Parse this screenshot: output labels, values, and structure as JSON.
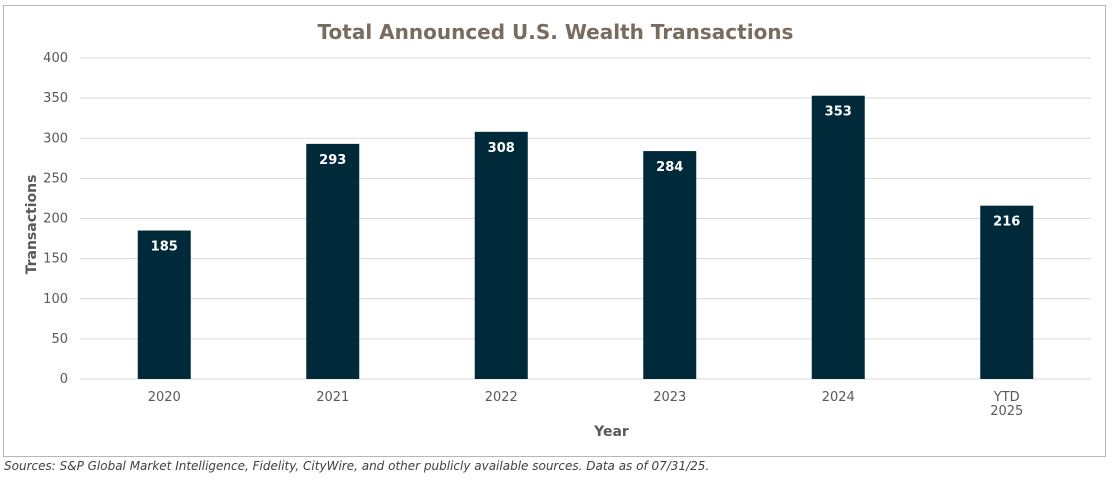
{
  "chart_data": {
    "type": "bar",
    "title": "Total Announced U.S. Wealth Transactions",
    "xlabel": "Year",
    "ylabel": "Transactions",
    "categories": [
      [
        "2020"
      ],
      [
        "2021"
      ],
      [
        "2022"
      ],
      [
        "2023"
      ],
      [
        "2024"
      ],
      [
        "YTD",
        "2025"
      ]
    ],
    "values": [
      185,
      293,
      308,
      284,
      353,
      216
    ],
    "ylim": [
      0,
      400
    ],
    "yticks": [
      0,
      50,
      100,
      150,
      200,
      250,
      300,
      350,
      400
    ],
    "grid": true,
    "legend": "none",
    "data_labels": true,
    "bar_color": "#002a3a"
  },
  "footer": {
    "source": "Sources: S&P Global Market Intelligence, Fidelity, CityWire, and other publicly available sources. Data as of 07/31/25."
  }
}
